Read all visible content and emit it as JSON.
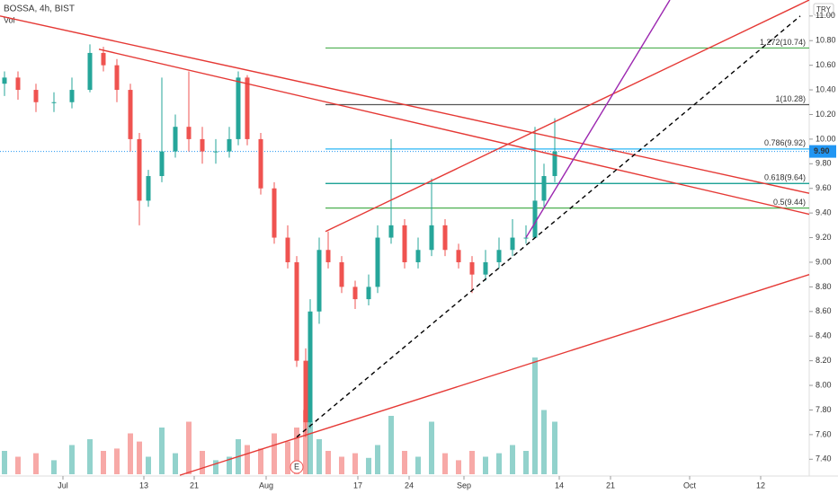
{
  "chart_data": {
    "type": "candlestick",
    "title": "BOSSA, 4h, BIST",
    "volume_label": "Vol",
    "currency": "TRY",
    "xlim": [
      0,
      90
    ],
    "xticks": [
      {
        "value": 7,
        "label": "Jul"
      },
      {
        "value": 16,
        "label": "13"
      },
      {
        "value": 21.6,
        "label": "21"
      },
      {
        "value": 29.6,
        "label": "Aug"
      },
      {
        "value": 39.8,
        "label": "17"
      },
      {
        "value": 45.5,
        "label": "24"
      },
      {
        "value": 51.6,
        "label": "Sep"
      },
      {
        "value": 62.2,
        "label": "14"
      },
      {
        "value": 67.9,
        "label": "21"
      },
      {
        "value": 76.7,
        "label": "Oct"
      },
      {
        "value": 84.6,
        "label": "12"
      }
    ],
    "ylim": [
      7.3,
      11.13
    ],
    "yticks": [
      {
        "value": 7.4,
        "label": "7.40"
      },
      {
        "value": 7.6,
        "label": "7.60"
      },
      {
        "value": 7.8,
        "label": "7.80"
      },
      {
        "value": 8,
        "label": "8.00"
      },
      {
        "value": 8.2,
        "label": "8.20"
      },
      {
        "value": 8.4,
        "label": "8.40"
      },
      {
        "value": 8.6,
        "label": "8.60"
      },
      {
        "value": 8.8,
        "label": "8.80"
      },
      {
        "value": 9,
        "label": "9.00"
      },
      {
        "value": 9.2,
        "label": "9.20"
      },
      {
        "value": 9.4,
        "label": "9.40"
      },
      {
        "value": 9.6,
        "label": "9.60"
      },
      {
        "value": 9.8,
        "label": "9.80"
      },
      {
        "value": 10,
        "label": "10.00"
      },
      {
        "value": 10.2,
        "label": "10.20"
      },
      {
        "value": 10.4,
        "label": "10.40"
      },
      {
        "value": 10.6,
        "label": "10.60"
      },
      {
        "value": 10.8,
        "label": "10.80"
      },
      {
        "value": 11,
        "label": "11.00"
      }
    ],
    "up_color": "#26a69a",
    "down_color": "#ef5350",
    "x": [
      0.5,
      2,
      4,
      6,
      8,
      10,
      11.5,
      13,
      14.5,
      15.5,
      16.5,
      18,
      19.5,
      21,
      22.5,
      24,
      25.5,
      26.5,
      27.5,
      29,
      30.5,
      32,
      33,
      34,
      34.5,
      35.5,
      36.5,
      38,
      39.5,
      41,
      42,
      43.5,
      45,
      46.5,
      48,
      49.5,
      51,
      52.5,
      54,
      55.5,
      57,
      58.5,
      59.5,
      60.5,
      61.7
    ],
    "open": [
      10.45,
      10.5,
      10.4,
      10.3,
      10.3,
      10.4,
      10.7,
      10.6,
      10.4,
      10.0,
      9.5,
      9.7,
      9.9,
      10.1,
      10.0,
      9.9,
      9.9,
      10.0,
      10.5,
      10.0,
      9.6,
      9.2,
      9.0,
      8.2,
      7.7,
      8.6,
      9.1,
      9.0,
      8.8,
      8.7,
      8.8,
      9.2,
      9.3,
      9.0,
      9.1,
      9.3,
      9.1,
      9.0,
      8.9,
      9.0,
      9.1,
      9.2,
      9.2,
      9.5,
      9.7
    ],
    "high": [
      10.55,
      10.55,
      10.45,
      10.38,
      10.5,
      10.77,
      10.75,
      10.65,
      10.45,
      10.05,
      9.75,
      10.5,
      10.2,
      10.55,
      10.1,
      10.0,
      10.1,
      10.55,
      10.52,
      10.05,
      9.65,
      9.3,
      9.05,
      8.3,
      8.7,
      9.2,
      9.25,
      9.05,
      8.85,
      8.9,
      9.3,
      10.0,
      9.35,
      9.2,
      9.68,
      9.35,
      9.15,
      9.05,
      9.1,
      9.2,
      9.35,
      9.3,
      10.1,
      9.8,
      10.17
    ],
    "low": [
      10.35,
      10.32,
      10.22,
      10.22,
      10.25,
      10.38,
      10.55,
      10.3,
      9.9,
      9.3,
      9.45,
      9.65,
      9.85,
      9.9,
      9.8,
      9.8,
      9.85,
      9.95,
      9.95,
      9.55,
      9.15,
      8.95,
      8.15,
      7.58,
      7.65,
      8.5,
      8.95,
      8.75,
      8.62,
      8.65,
      8.75,
      9.15,
      8.95,
      8.95,
      9.05,
      9.05,
      8.95,
      8.75,
      8.85,
      8.95,
      9.05,
      9.15,
      9.2,
      9.45,
      9.65
    ],
    "close": [
      10.5,
      10.4,
      10.3,
      10.3,
      10.4,
      10.7,
      10.6,
      10.4,
      10.0,
      9.5,
      9.7,
      9.9,
      10.1,
      10.0,
      9.9,
      9.9,
      10.0,
      10.5,
      10.0,
      9.6,
      9.2,
      9.0,
      8.2,
      7.7,
      8.6,
      9.1,
      9.0,
      8.8,
      8.7,
      8.8,
      9.2,
      9.3,
      9.0,
      9.1,
      9.3,
      9.1,
      9.0,
      8.9,
      9.0,
      9.1,
      9.2,
      9.2,
      9.5,
      9.7,
      9.9
    ],
    "vlim": [
      0,
      100
    ],
    "volume": [
      20,
      15,
      18,
      12,
      25,
      30,
      20,
      22,
      35,
      28,
      15,
      40,
      18,
      45,
      20,
      12,
      15,
      30,
      25,
      22,
      35,
      28,
      40,
      55,
      45,
      30,
      20,
      15,
      18,
      14,
      25,
      50,
      20,
      15,
      45,
      18,
      12,
      20,
      15,
      18,
      25,
      20,
      100,
      55,
      45
    ],
    "last_price": {
      "value": 9.9,
      "label": "9.90",
      "color": "#2196f3"
    },
    "fib_levels": [
      {
        "value": 10.74,
        "label": "1.272(10.74)",
        "color": "#4caf50"
      },
      {
        "value": 10.28,
        "label": "1(10.28)",
        "color": "#555555"
      },
      {
        "value": 9.92,
        "label": "0.786(9.92)",
        "color": "#29b6f6"
      },
      {
        "value": 9.64,
        "label": "0.618(9.64)",
        "color": "#009688"
      },
      {
        "value": 9.44,
        "label": "0.5(9.44)",
        "color": "#4caf50"
      }
    ],
    "fib_start": 36.2,
    "trend_lines": [
      {
        "x": [
          0,
          90
        ],
        "y": [
          11.0,
          9.56
        ],
        "color": "#e53935",
        "dash": false
      },
      {
        "x": [
          11,
          90
        ],
        "y": [
          10.73,
          9.39
        ],
        "color": "#e53935",
        "dash": false
      },
      {
        "x": [
          36.2,
          90
        ],
        "y": [
          9.25,
          11.13
        ],
        "color": "#e53935",
        "dash": false
      },
      {
        "x": [
          20,
          90
        ],
        "y": [
          7.27,
          8.9
        ],
        "color": "#e53935",
        "dash": false
      },
      {
        "x": [
          33,
          89
        ],
        "y": [
          7.58,
          11.0
        ],
        "color": "#000000",
        "dash": true
      },
      {
        "x": [
          58.5,
          74.5
        ],
        "y": [
          9.2,
          11.13
        ],
        "color": "#9c27b0",
        "dash": false
      }
    ],
    "event_label": "E"
  }
}
